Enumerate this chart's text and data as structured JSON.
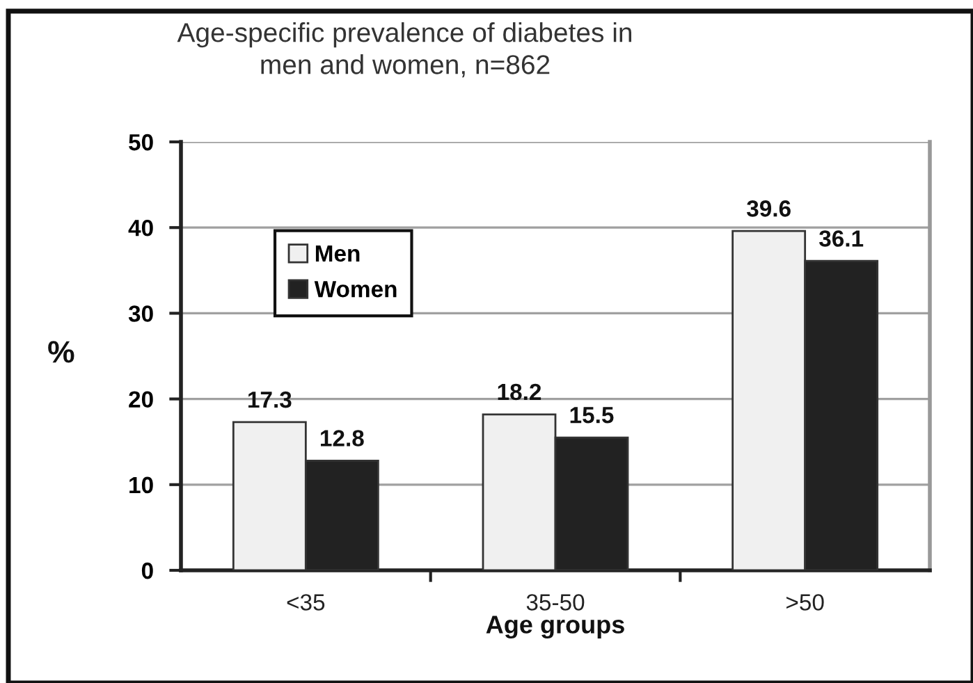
{
  "chart_data": {
    "type": "bar",
    "title": "Age-specific prevalence of diabetes in\nmen and women, n=862",
    "xlabel": "Age groups",
    "ylabel": "%",
    "categories": [
      "<35",
      "35-50",
      ">50"
    ],
    "series": [
      {
        "name": "Men",
        "color": "#f0f0f0",
        "values": [
          17.3,
          18.2,
          39.6
        ]
      },
      {
        "name": "Women",
        "color": "#222222",
        "values": [
          12.8,
          15.5,
          36.1
        ]
      }
    ],
    "ylim": [
      0,
      50
    ],
    "yticks": [
      0,
      10,
      20,
      30,
      40,
      50
    ],
    "grid": "y",
    "legend": "top left",
    "data_labels": true
  }
}
